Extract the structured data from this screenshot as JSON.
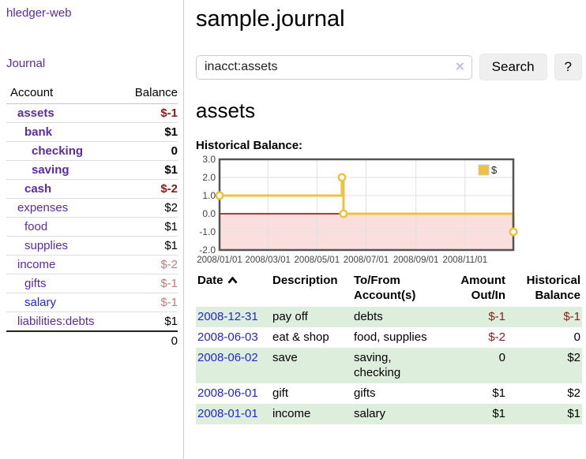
{
  "app": {
    "title": "hledger-web",
    "nav_journal": "Journal"
  },
  "colors": {
    "link_purple": "#5a2ca0",
    "link_blue": "#2525cc",
    "negative_red": "#8d1a1a",
    "faded_red": "#c07c80",
    "row_green": "#ddeedd",
    "series_yellow": "#EDC240"
  },
  "sidebar": {
    "columns": [
      "Account",
      "Balance"
    ],
    "accounts": [
      {
        "name": "assets",
        "level": 0,
        "bold": true,
        "balance": "$-1",
        "balance_class": "neg"
      },
      {
        "name": "bank",
        "level": 1,
        "bold": true,
        "balance": "$1",
        "balance_class": ""
      },
      {
        "name": "checking",
        "level": 2,
        "bold": true,
        "balance": "0",
        "balance_class": ""
      },
      {
        "name": "saving",
        "level": 2,
        "bold": true,
        "balance": "$1",
        "balance_class": ""
      },
      {
        "name": "cash",
        "level": 1,
        "bold": true,
        "balance": "$-2",
        "balance_class": "neg"
      },
      {
        "name": "expenses",
        "level": 0,
        "bold": false,
        "balance": "$2",
        "balance_class": ""
      },
      {
        "name": "food",
        "level": 1,
        "bold": false,
        "balance": "$1",
        "balance_class": ""
      },
      {
        "name": "supplies",
        "level": 1,
        "bold": false,
        "balance": "$1",
        "balance_class": ""
      },
      {
        "name": "income",
        "level": 0,
        "bold": false,
        "balance": "$-2",
        "balance_class": "faded"
      },
      {
        "name": "gifts",
        "level": 1,
        "bold": false,
        "balance": "$-1",
        "balance_class": "faded"
      },
      {
        "name": "salary",
        "level": 1,
        "bold": false,
        "link_style": "unvisited",
        "balance": "$-1",
        "balance_class": "faded"
      },
      {
        "name": "liabilities:debts",
        "level": 0,
        "bold": false,
        "balance": "$1",
        "balance_class": ""
      }
    ],
    "total": "0"
  },
  "header": {
    "title": "sample.journal"
  },
  "search": {
    "value": "inacct:assets",
    "clear_glyph": "✕",
    "button_label": "Search",
    "help_label": "?"
  },
  "account_page": {
    "heading": "assets",
    "chart_label": "Historical Balance:"
  },
  "chart_data": {
    "type": "line",
    "title": "Historical Balance",
    "step": true,
    "legend": [
      {
        "label": "$",
        "color": "#EDC240"
      }
    ],
    "legend_position": "top-right",
    "xlim_days": [
      0,
      365
    ],
    "ylim": [
      -2.0,
      3.0
    ],
    "y_ticks": [
      "3.0",
      "2.0",
      "1.0",
      "0.0",
      "-1.0",
      "-2.0"
    ],
    "y_tick_values": [
      3,
      2,
      1,
      0,
      -1,
      -2
    ],
    "x_ticks": [
      {
        "day": 0,
        "label": "2008/01/01"
      },
      {
        "day": 60,
        "label": "2008/03/01"
      },
      {
        "day": 121,
        "label": "2008/05/01"
      },
      {
        "day": 182,
        "label": "2008/07/01"
      },
      {
        "day": 244,
        "label": "2008/09/01"
      },
      {
        "day": 305,
        "label": "2008/11/01"
      }
    ],
    "points": [
      {
        "date": "2008-01-01",
        "day": 0,
        "value": 1.0
      },
      {
        "date": "2008-06-01",
        "day": 152,
        "value": 2.0
      },
      {
        "date": "2008-06-03",
        "day": 154,
        "value": 0.0
      },
      {
        "date": "2008-12-31",
        "day": 365,
        "value": -1.0
      }
    ],
    "series_color": "#EDC240",
    "zero_line_color": "#8b0000",
    "negative_region_color": "#fbdfdf",
    "grid_color": "#e0e0e0",
    "border_color": "#545454"
  },
  "register": {
    "columns": [
      "Date",
      "Description",
      "To/From Account(s)",
      "Amount Out/In",
      "Historical Balance"
    ],
    "rows": [
      {
        "date": "2008-12-31",
        "description": "pay off",
        "accounts_lines": [
          "debts"
        ],
        "amount": "$-1",
        "amount_class": "neg",
        "balance": "$-1",
        "balance_class": "neg"
      },
      {
        "date": "2008-06-03",
        "description": "eat & shop",
        "accounts_lines": [
          "food, supplies"
        ],
        "amount": "$-2",
        "amount_class": "neg",
        "balance": "0",
        "balance_class": ""
      },
      {
        "date": "2008-06-02",
        "description": "save",
        "accounts_lines": [
          "saving,",
          "checking"
        ],
        "amount": "0",
        "amount_class": "",
        "balance": "$2",
        "balance_class": ""
      },
      {
        "date": "2008-06-01",
        "description": "gift",
        "accounts_lines": [
          "gifts"
        ],
        "amount": "$1",
        "amount_class": "",
        "balance": "$2",
        "balance_class": ""
      },
      {
        "date": "2008-01-01",
        "description": "income",
        "accounts_lines": [
          "salary"
        ],
        "amount": "$1",
        "amount_class": "",
        "balance": "$1",
        "balance_class": ""
      }
    ]
  }
}
